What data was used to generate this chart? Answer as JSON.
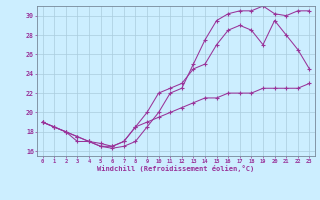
{
  "bg_color": "#cceeff",
  "line_color": "#993399",
  "grid_color": "#aaccdd",
  "xlabel": "Windchill (Refroidissement éolien,°C)",
  "xlim": [
    -0.5,
    23.5
  ],
  "ylim": [
    15.5,
    31.0
  ],
  "xticks": [
    0,
    1,
    2,
    3,
    4,
    5,
    6,
    7,
    8,
    9,
    10,
    11,
    12,
    13,
    14,
    15,
    16,
    17,
    18,
    19,
    20,
    21,
    22,
    23
  ],
  "yticks": [
    16,
    18,
    20,
    22,
    24,
    26,
    28,
    30
  ],
  "line1_x": [
    0,
    1,
    2,
    3,
    4,
    5,
    6,
    7,
    8,
    9,
    10,
    11,
    12,
    13,
    14,
    15,
    16,
    17,
    18,
    19,
    20,
    21,
    22,
    23
  ],
  "line1_y": [
    19.0,
    18.5,
    18.0,
    17.5,
    17.0,
    16.8,
    16.5,
    17.0,
    18.5,
    20.0,
    22.0,
    22.5,
    23.0,
    24.5,
    25.0,
    27.0,
    28.5,
    29.0,
    28.5,
    27.0,
    29.5,
    28.0,
    26.5,
    24.5
  ],
  "line2_x": [
    0,
    1,
    2,
    3,
    4,
    5,
    6,
    7,
    8,
    9,
    10,
    11,
    12,
    13,
    14,
    15,
    16,
    17,
    18,
    19,
    20,
    21,
    22,
    23
  ],
  "line2_y": [
    19.0,
    18.5,
    18.0,
    17.0,
    17.0,
    16.5,
    16.3,
    16.5,
    17.0,
    18.5,
    20.0,
    22.0,
    22.5,
    25.0,
    27.5,
    29.5,
    30.2,
    30.5,
    30.5,
    31.0,
    30.2,
    30.0,
    30.5,
    30.5
  ],
  "line3_x": [
    0,
    1,
    2,
    3,
    4,
    5,
    6,
    7,
    8,
    9,
    10,
    11,
    12,
    13,
    14,
    15,
    16,
    17,
    18,
    19,
    20,
    21,
    22,
    23
  ],
  "line3_y": [
    19.0,
    18.5,
    18.0,
    17.5,
    17.0,
    16.5,
    16.5,
    17.0,
    18.5,
    19.0,
    19.5,
    20.0,
    20.5,
    21.0,
    21.5,
    21.5,
    22.0,
    22.0,
    22.0,
    22.5,
    22.5,
    22.5,
    22.5,
    23.0
  ]
}
